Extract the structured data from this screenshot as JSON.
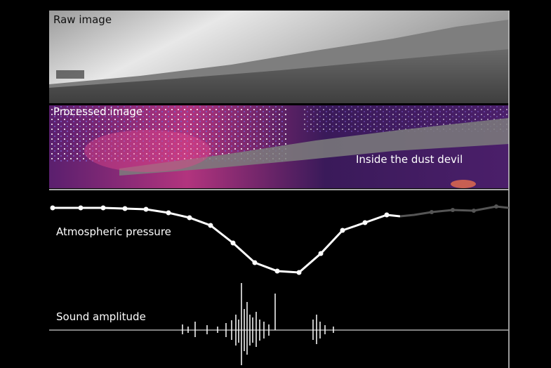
{
  "panels": {
    "raw": {
      "label": "Raw image"
    },
    "processed": {
      "label": "Processed image",
      "annotation": "Inside the dust devil"
    },
    "pressure": {
      "label": "Atmospheric pressure"
    },
    "sound": {
      "label": "Sound amplitude"
    }
  }
}
